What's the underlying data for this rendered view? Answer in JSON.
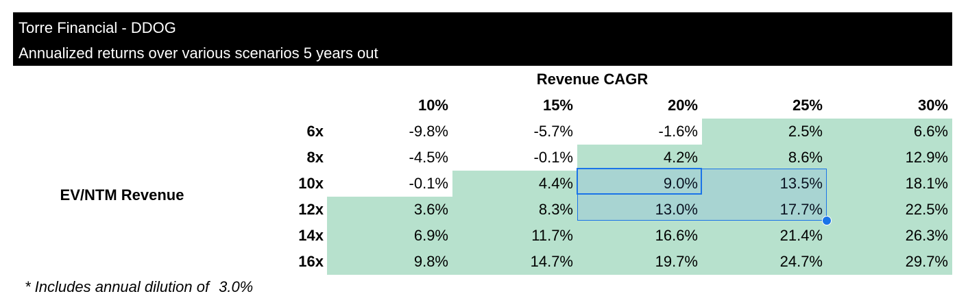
{
  "sheet": {
    "title": "Torre Financial - DDOG",
    "subtitle": "Annualized returns over various scenarios 5 years out",
    "col_axis_label": "Revenue CAGR",
    "row_axis_label": "EV/NTM Revenue",
    "columns": [
      "10%",
      "15%",
      "20%",
      "25%",
      "30%"
    ],
    "rows": [
      {
        "label": "6x",
        "values": [
          "-9.8%",
          "-5.7%",
          "-1.6%",
          "2.5%",
          "6.6%"
        ]
      },
      {
        "label": "8x",
        "values": [
          "-4.5%",
          "-0.1%",
          "4.2%",
          "8.6%",
          "12.9%"
        ]
      },
      {
        "label": "10x",
        "values": [
          "-0.1%",
          "4.4%",
          "9.0%",
          "13.5%",
          "18.1%"
        ]
      },
      {
        "label": "12x",
        "values": [
          "3.6%",
          "8.3%",
          "13.0%",
          "17.7%",
          "22.5%"
        ]
      },
      {
        "label": "14x",
        "values": [
          "6.9%",
          "11.7%",
          "16.6%",
          "21.4%",
          "26.3%"
        ]
      },
      {
        "label": "16x",
        "values": [
          "9.8%",
          "14.7%",
          "19.7%",
          "24.7%",
          "29.7%"
        ]
      }
    ],
    "footnote_text": "* Includes annual dilution of",
    "footnote_value": "3.0%"
  },
  "colors": {
    "header_bg": "#000000",
    "header_text": "#ffffff",
    "positive_fill": "#b7e1cd",
    "selection": "#1a73e8"
  }
}
